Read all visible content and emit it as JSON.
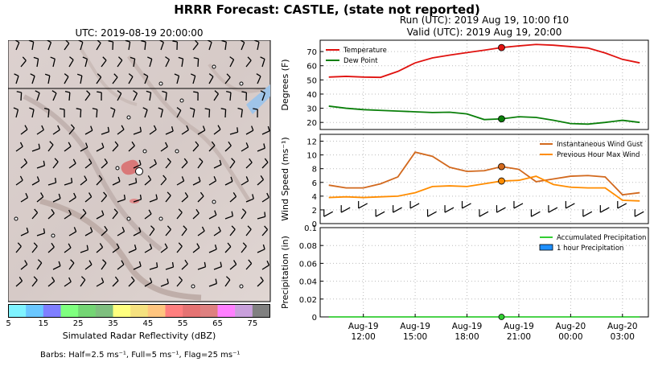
{
  "header": {
    "title": "HRRR Forecast: CASTLE, (state not reported)",
    "run": "Run (UTC): 2019 Aug 19, 10:00 f10",
    "valid": "Valid (UTC): 2019 Aug 19, 20:00"
  },
  "map": {
    "utc_label": "UTC: 2019-08-19 20:00:00",
    "colorbar": {
      "label": "Simulated Radar Reflectivity (dBZ)",
      "ticks": [
        "5",
        "15",
        "25",
        "35",
        "45",
        "55",
        "65",
        "75"
      ],
      "colors": [
        "#7ff3ff",
        "#6ac7ff",
        "#7f7fff",
        "#7fff7f",
        "#74d574",
        "#7fbf7f",
        "#ffff7f",
        "#f5e17f",
        "#ffc57f",
        "#ff7f7f",
        "#e57373",
        "#de8080",
        "#ff7fff",
        "#c9a0dc",
        "#808080"
      ]
    },
    "barbs_note": "Barbs: Half=2.5 ms⁻¹, Full=5 ms⁻¹, Flag=25 ms⁻¹"
  },
  "chart_data": [
    {
      "type": "line",
      "ylabel": "Degrees (F)",
      "ylim": [
        15,
        78
      ],
      "yticks": [
        20,
        30,
        40,
        50,
        60,
        70
      ],
      "x_hours": [
        0,
        1,
        2,
        3,
        4,
        5,
        6,
        7,
        8,
        9,
        10,
        11,
        12,
        13,
        14,
        15,
        16,
        17,
        18
      ],
      "series": [
        {
          "name": "Temperature",
          "color": "#e0120f",
          "values": [
            52,
            52.5,
            52,
            51.8,
            56,
            62,
            65.5,
            67.5,
            69.3,
            71,
            72.8,
            74,
            75,
            74.5,
            73.5,
            72.5,
            69,
            64.5,
            62
          ]
        },
        {
          "name": "Dew Point",
          "color": "#0a7f0a",
          "values": [
            31.5,
            30,
            29,
            28.5,
            28,
            27.5,
            27,
            27.2,
            26,
            22,
            22.5,
            24,
            23.5,
            21.5,
            19.2,
            18.8,
            20,
            21.5,
            20
          ]
        }
      ],
      "marker_hour": 10,
      "legend": "top-left"
    },
    {
      "type": "line",
      "ylabel": "Wind Speed (ms⁻¹)",
      "ylim": [
        0,
        13
      ],
      "yticks": [
        0,
        2,
        4,
        6,
        8,
        10,
        12
      ],
      "x_hours": [
        0,
        1,
        2,
        3,
        4,
        5,
        6,
        7,
        8,
        9,
        10,
        11,
        12,
        13,
        14,
        15,
        16,
        17,
        18
      ],
      "series": [
        {
          "name": "Instantaneous Wind Gust",
          "color": "#d2691e",
          "values": [
            5.6,
            5.2,
            5.2,
            5.8,
            6.8,
            10.4,
            9.8,
            8.2,
            7.6,
            7.7,
            8.3,
            7.9,
            6.1,
            6.5,
            6.9,
            7.0,
            6.8,
            4.2,
            4.5
          ]
        },
        {
          "name": "Previous Hour Max Wind",
          "color": "#ff8c00",
          "values": [
            3.8,
            3.9,
            3.8,
            3.9,
            4.0,
            4.5,
            5.4,
            5.5,
            5.4,
            5.8,
            6.2,
            6.3,
            6.9,
            5.7,
            5.3,
            5.2,
            5.2,
            3.4,
            3.3
          ]
        }
      ],
      "marker_hour": 10,
      "legend": "top-right"
    },
    {
      "type": "bar",
      "ylabel": "Precipitation (in)",
      "ylim": [
        0,
        0.1
      ],
      "yticks": [
        0.0,
        0.02,
        0.04,
        0.06,
        0.08,
        0.1
      ],
      "x_hours": [
        0,
        1,
        2,
        3,
        4,
        5,
        6,
        7,
        8,
        9,
        10,
        11,
        12,
        13,
        14,
        15,
        16,
        17,
        18
      ],
      "series": [
        {
          "name": "Accumulated Precipitation",
          "color": "#32cd32",
          "values": [
            0,
            0,
            0,
            0,
            0,
            0,
            0,
            0,
            0,
            0,
            0,
            0,
            0,
            0,
            0,
            0,
            0,
            0,
            0
          ]
        },
        {
          "name": "1 hour Precipitation",
          "color": "#1e90ff",
          "values": [
            0,
            0,
            0,
            0,
            0,
            0,
            0,
            0,
            0,
            0,
            0,
            0,
            0,
            0,
            0,
            0,
            0,
            0,
            0
          ]
        }
      ],
      "marker_hour": 10,
      "legend": "top-right"
    }
  ],
  "xaxis": {
    "ticks": [
      {
        "hour": 2,
        "top": "Aug-19",
        "bottom": "12:00"
      },
      {
        "hour": 5,
        "top": "Aug-19",
        "bottom": "15:00"
      },
      {
        "hour": 8,
        "top": "Aug-19",
        "bottom": "18:00"
      },
      {
        "hour": 11,
        "top": "Aug-19",
        "bottom": "21:00"
      },
      {
        "hour": 14,
        "top": "Aug-20",
        "bottom": "00:00"
      },
      {
        "hour": 17,
        "top": "Aug-20",
        "bottom": "03:00"
      }
    ]
  }
}
